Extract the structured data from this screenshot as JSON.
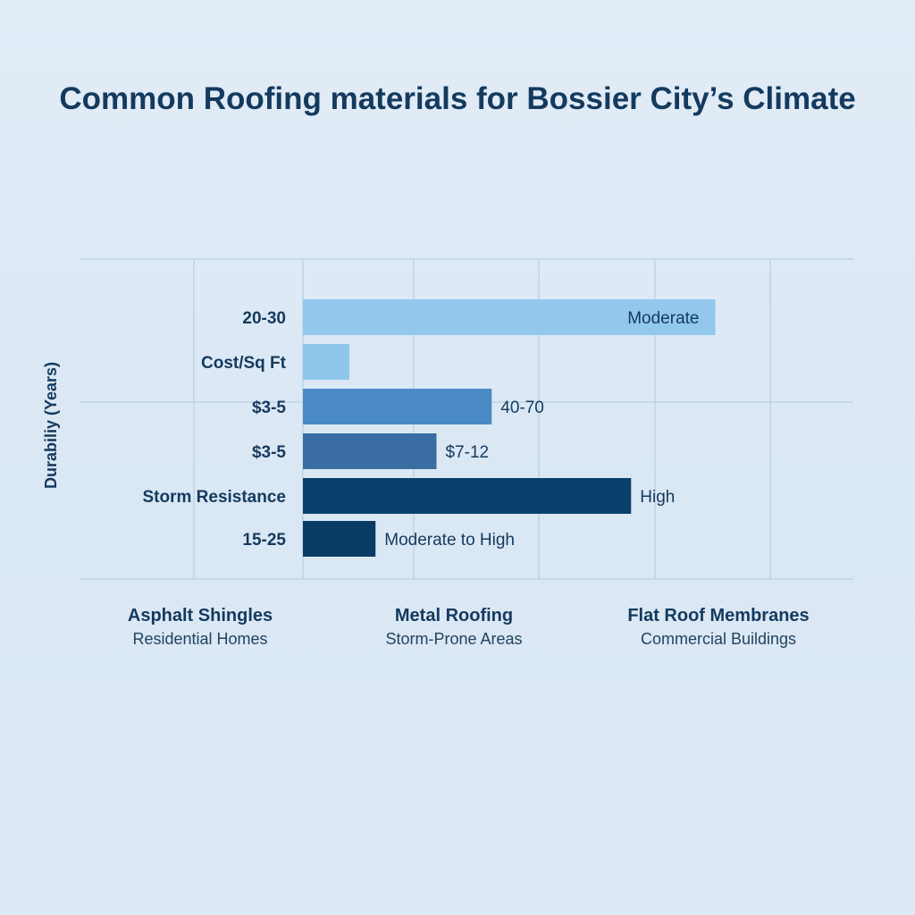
{
  "chart_data": {
    "type": "bar",
    "orientation": "horizontal",
    "title": "Common Roofing materials for Bossier City’s Climate",
    "ylabel": "Durabiliy (Years)",
    "xlabel": "",
    "grid": true,
    "xlim": [
      0,
      10
    ],
    "categories": [
      "20-30",
      "Cost/Sq Ft",
      "$3-5",
      "$3-5",
      "Storm Resistance",
      "15-25"
    ],
    "values": [
      7.1,
      0.8,
      3.25,
      2.3,
      5.65,
      1.25
    ],
    "bar_labels": [
      "Moderate",
      "",
      "40-70",
      "$7-12",
      "High",
      "Moderate to High"
    ],
    "bar_label_position": [
      "inside-end",
      "none",
      "outside-end",
      "outside-end",
      "outside-end",
      "outside-end"
    ],
    "colors": [
      "#92c8ec",
      "#8fc6eb",
      "#4a8ac4",
      "#3a6ea3",
      "#083f6b",
      "#083c66"
    ]
  },
  "materials": [
    {
      "name": "Asphalt Shingles",
      "use": "Residential Homes"
    },
    {
      "name": "Metal Roofing",
      "use": "Storm-Prone Areas"
    },
    {
      "name": "Flat Roof Membranes",
      "use": "Commercial Buildings"
    }
  ],
  "colors": {
    "text": "#143a5e",
    "grid": "#bcd4e6"
  }
}
